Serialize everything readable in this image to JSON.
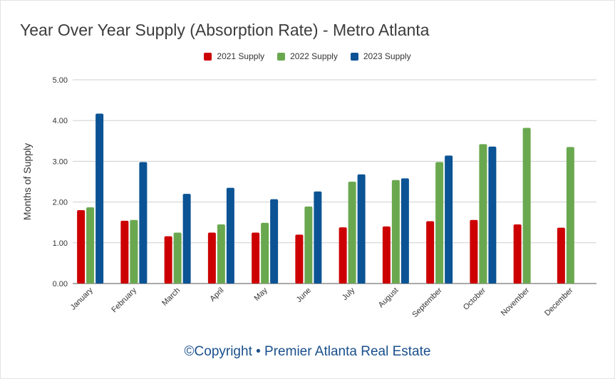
{
  "chart_data": {
    "type": "bar",
    "title": "Year Over Year Supply (Absorption Rate) - Metro Atlanta",
    "ylabel": "Months of Supply",
    "xlabel": "",
    "ylim": [
      0,
      5
    ],
    "yticks": [
      "0.00",
      "1.00",
      "2.00",
      "3.00",
      "4.00",
      "5.00"
    ],
    "grid": true,
    "legend_position": "top-center",
    "categories": [
      "January",
      "February",
      "March",
      "April",
      "May",
      "June",
      "July",
      "August",
      "September",
      "October",
      "November",
      "December"
    ],
    "series": [
      {
        "name": "2021 Supply",
        "color": "#cc0000",
        "values": [
          1.8,
          1.54,
          1.16,
          1.25,
          1.25,
          1.2,
          1.38,
          1.4,
          1.53,
          1.56,
          1.45,
          1.37
        ]
      },
      {
        "name": "2022 Supply",
        "color": "#6aa84f",
        "values": [
          1.87,
          1.56,
          1.25,
          1.45,
          1.49,
          1.89,
          2.5,
          2.54,
          2.98,
          3.42,
          3.82,
          3.35
        ]
      },
      {
        "name": "2023 Supply",
        "color": "#0b5394",
        "values": [
          4.17,
          2.98,
          2.2,
          2.35,
          2.07,
          2.26,
          2.68,
          2.58,
          3.14,
          3.36,
          null,
          null
        ]
      }
    ]
  },
  "footer": {
    "credit": "©Copyright • Premier Atlanta Real Estate"
  }
}
